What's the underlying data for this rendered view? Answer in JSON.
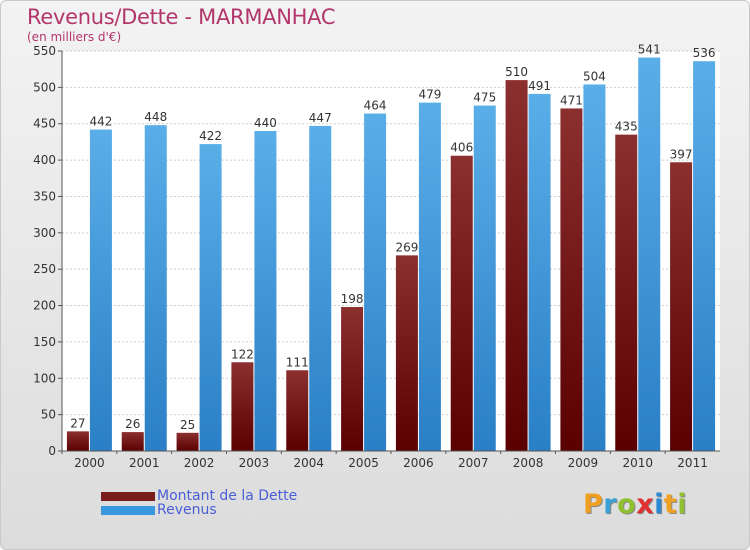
{
  "chart_data": {
    "type": "bar",
    "title": "Revenus/Dette - MARMANHAC",
    "subtitle": "(en milliers d'€)",
    "categories": [
      "2000",
      "2001",
      "2002",
      "2003",
      "2004",
      "2005",
      "2006",
      "2007",
      "2008",
      "2009",
      "2010",
      "2011"
    ],
    "series": [
      {
        "name": "Montant de la Dette",
        "color": "#7a1c1c",
        "values": [
          27,
          26,
          25,
          122,
          111,
          198,
          269,
          406,
          510,
          471,
          435,
          397
        ]
      },
      {
        "name": "Revenus",
        "color": "#3a98e0",
        "values": [
          442,
          448,
          422,
          440,
          447,
          464,
          479,
          475,
          491,
          504,
          541,
          536
        ]
      }
    ],
    "ylim": [
      0,
      550
    ],
    "yticks": [
      0,
      50,
      100,
      150,
      200,
      250,
      300,
      350,
      400,
      450,
      500,
      550
    ],
    "grid": true,
    "legend": "bottom-left"
  },
  "logo": {
    "letters": [
      "P",
      "r",
      "o",
      "x",
      "i",
      "t",
      "i"
    ],
    "colors": [
      "#f0a020",
      "#3aa0d8",
      "#90c030",
      "#e03030",
      "#2b8ad6",
      "#f0a020",
      "#90c030"
    ]
  }
}
